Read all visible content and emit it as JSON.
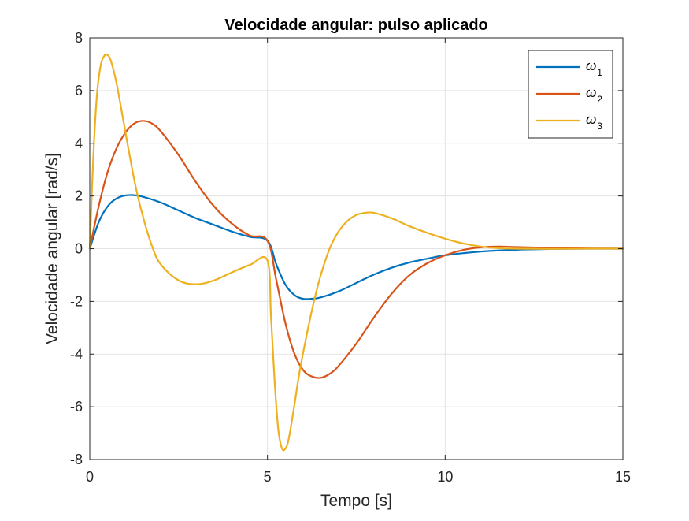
{
  "chart_data": {
    "type": "line",
    "title": "Velocidade angular: pulso aplicado",
    "xlabel": "Tempo [s]",
    "ylabel": "Velocidade angular [rad/s]",
    "xlim": [
      0,
      15
    ],
    "ylim": [
      -8,
      8
    ],
    "xticks": [
      0,
      5,
      10,
      15
    ],
    "yticks": [
      -8,
      -6,
      -4,
      -2,
      0,
      2,
      4,
      6,
      8
    ],
    "xtick_labels": [
      "0",
      "5",
      "10",
      "15"
    ],
    "ytick_labels": [
      "-8",
      "-6",
      "-4",
      "-2",
      "0",
      "2",
      "4",
      "6",
      "8"
    ],
    "grid": true,
    "legend_position": "top-right",
    "series": [
      {
        "name": "ω1",
        "symbol": "ω",
        "subscript": "1",
        "color": "#0072BD",
        "x": [
          0,
          0.25,
          0.5,
          0.75,
          1,
          1.25,
          1.5,
          2,
          2.5,
          3,
          3.5,
          4,
          4.5,
          5,
          5.25,
          5.5,
          5.75,
          6,
          6.25,
          6.5,
          7,
          7.5,
          8,
          8.5,
          9,
          9.5,
          10,
          11,
          12,
          13,
          14,
          15
        ],
        "y": [
          0,
          1.0,
          1.6,
          1.9,
          2.02,
          2.03,
          1.97,
          1.75,
          1.45,
          1.15,
          0.9,
          0.65,
          0.45,
          0.3,
          -0.6,
          -1.35,
          -1.75,
          -1.9,
          -1.9,
          -1.85,
          -1.62,
          -1.3,
          -0.98,
          -0.72,
          -0.52,
          -0.38,
          -0.25,
          -0.11,
          -0.04,
          -0.01,
          0,
          0
        ]
      },
      {
        "name": "ω2",
        "symbol": "ω",
        "subscript": "2",
        "color": "#D95319",
        "x": [
          0,
          0.25,
          0.5,
          0.75,
          1,
          1.25,
          1.5,
          1.75,
          2,
          2.5,
          3,
          3.5,
          4,
          4.5,
          5,
          5.25,
          5.5,
          5.75,
          6,
          6.25,
          6.5,
          6.75,
          7,
          7.5,
          8,
          8.5,
          9,
          9.5,
          10,
          10.5,
          11,
          11.5,
          12,
          13,
          14,
          15
        ],
        "y": [
          0,
          1.6,
          2.9,
          3.8,
          4.4,
          4.75,
          4.85,
          4.75,
          4.45,
          3.55,
          2.5,
          1.6,
          0.95,
          0.5,
          0.3,
          -1.2,
          -2.8,
          -3.95,
          -4.6,
          -4.85,
          -4.9,
          -4.75,
          -4.45,
          -3.6,
          -2.6,
          -1.7,
          -1.0,
          -0.55,
          -0.25,
          -0.05,
          0.05,
          0.08,
          0.06,
          0.03,
          0.01,
          0
        ]
      },
      {
        "name": "ω3",
        "symbol": "ω",
        "subscript": "3",
        "color": "#EDB120",
        "x": [
          0,
          0.1,
          0.2,
          0.3,
          0.4,
          0.5,
          0.6,
          0.75,
          0.9,
          1.1,
          1.3,
          1.5,
          1.75,
          2,
          2.5,
          3,
          3.5,
          4,
          4.5,
          5,
          5.1,
          5.2,
          5.3,
          5.4,
          5.5,
          5.6,
          5.75,
          5.9,
          6.1,
          6.3,
          6.5,
          6.75,
          7,
          7.25,
          7.5,
          7.75,
          8,
          8.5,
          9,
          9.5,
          10,
          10.5,
          11,
          11.5,
          12,
          13,
          14,
          15
        ],
        "y": [
          0,
          3.5,
          5.8,
          6.9,
          7.3,
          7.35,
          7.1,
          6.3,
          5.2,
          3.7,
          2.3,
          1.2,
          0.1,
          -0.6,
          -1.2,
          -1.35,
          -1.2,
          -0.9,
          -0.62,
          -0.45,
          -2.6,
          -5.0,
          -6.8,
          -7.55,
          -7.6,
          -7.2,
          -6.0,
          -4.7,
          -3.3,
          -2.05,
          -1.0,
          0.0,
          0.65,
          1.05,
          1.28,
          1.36,
          1.36,
          1.15,
          0.85,
          0.6,
          0.38,
          0.2,
          0.08,
          0.02,
          0.0,
          -0.01,
          0,
          0
        ]
      }
    ]
  }
}
